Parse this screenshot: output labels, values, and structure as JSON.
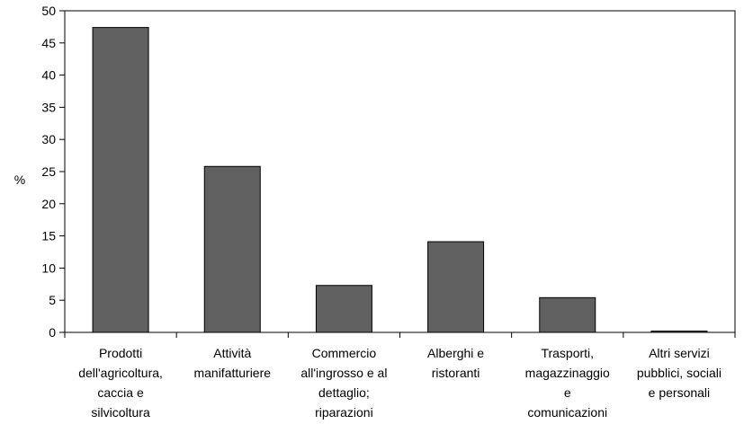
{
  "chart_data": {
    "type": "bar",
    "title": "",
    "xlabel": "",
    "ylabel": "%",
    "ylim": [
      0,
      50
    ],
    "yticks": [
      0,
      5,
      10,
      15,
      20,
      25,
      30,
      35,
      40,
      45,
      50
    ],
    "grid": false,
    "legend": "none",
    "categories": [
      [
        "Prodotti",
        "dell'agricoltura,",
        "caccia e",
        "silvicoltura"
      ],
      [
        "Attività",
        "manifatturiere"
      ],
      [
        "Commercio",
        "all'ingrosso e al",
        "dettaglio;",
        "riparazioni"
      ],
      [
        "Alberghi e",
        "ristoranti"
      ],
      [
        "Trasporti,",
        "magazzinaggio",
        "e",
        "comunicazioni"
      ],
      [
        "Altri servizi",
        "pubblici, sociali",
        "e personali"
      ]
    ],
    "values": [
      47.4,
      25.8,
      7.3,
      14.1,
      5.4,
      0.2
    ],
    "bar_color": "#606060"
  }
}
